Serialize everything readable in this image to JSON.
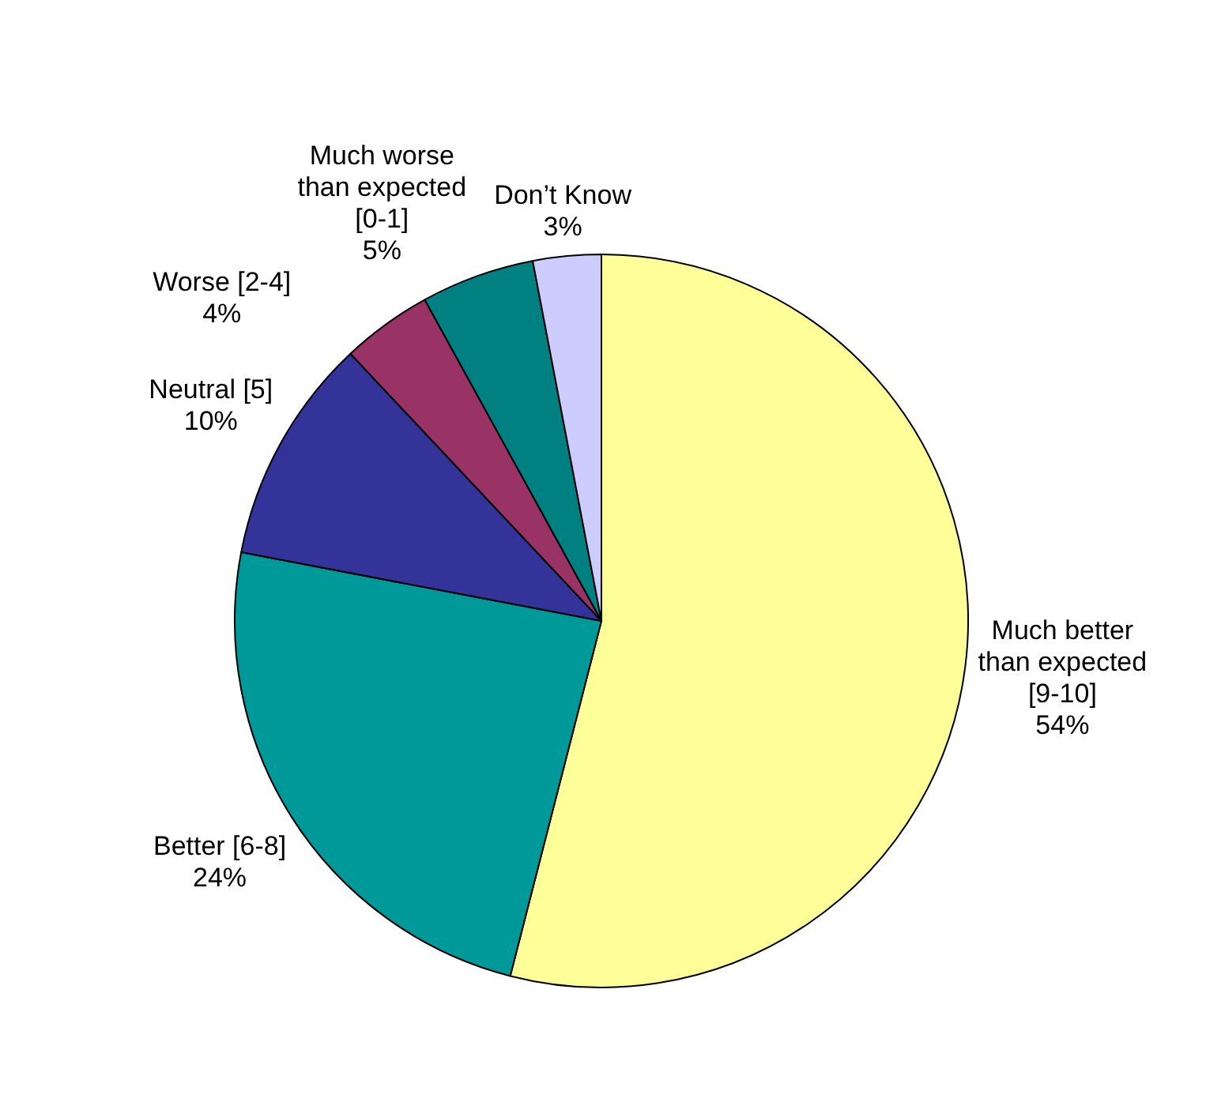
{
  "chart_data": {
    "type": "pie",
    "categories": [
      "Much better than expected [9-10]",
      "Better [6-8]",
      "Neutral [5]",
      "Worse [2-4]",
      "Much worse than expected [0-1]",
      "Don’t Know"
    ],
    "values": [
      54,
      24,
      10,
      4,
      5,
      3
    ],
    "value_labels": [
      "54%",
      "24%",
      "10%",
      "4%",
      "5%",
      "3%"
    ],
    "colors": [
      "#ffff99",
      "#009999",
      "#333399",
      "#993366",
      "#008080",
      "#ccccff"
    ],
    "legend": false
  }
}
